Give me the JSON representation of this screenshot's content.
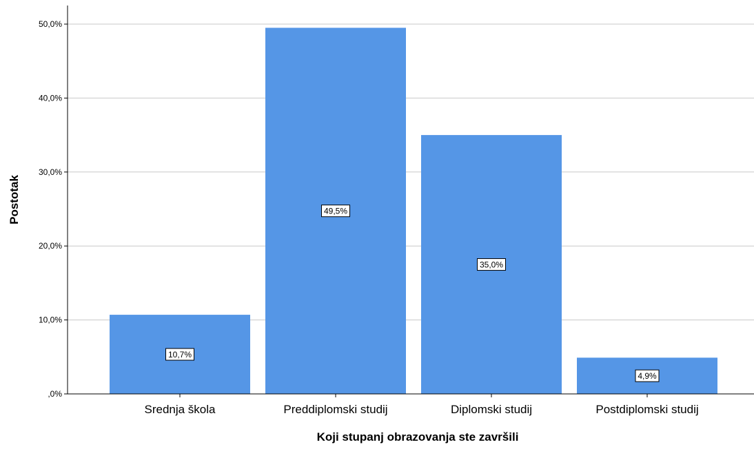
{
  "chart_data": {
    "type": "bar",
    "categories": [
      "Srednja škola",
      "Preddiplomski studij",
      "Diplomski studij",
      "Postdiplomski studij"
    ],
    "values": [
      10.7,
      49.5,
      35.0,
      4.9
    ],
    "data_labels": [
      "10,7%",
      "49,5%",
      "35,0%",
      "4,9%"
    ],
    "title": "",
    "xlabel": "Koji stupanj obrazovanja ste završili",
    "ylabel": "Postotak",
    "ylim": [
      0,
      50
    ],
    "yticks": [
      0,
      10,
      20,
      30,
      40,
      50
    ],
    "ytick_labels": [
      ",0%",
      "10,0%",
      "20,0%",
      "30,0%",
      "40,0%",
      "50,0%"
    ],
    "grid": true,
    "bar_color": "#5596e6",
    "grid_color": "#c8c8c8"
  }
}
